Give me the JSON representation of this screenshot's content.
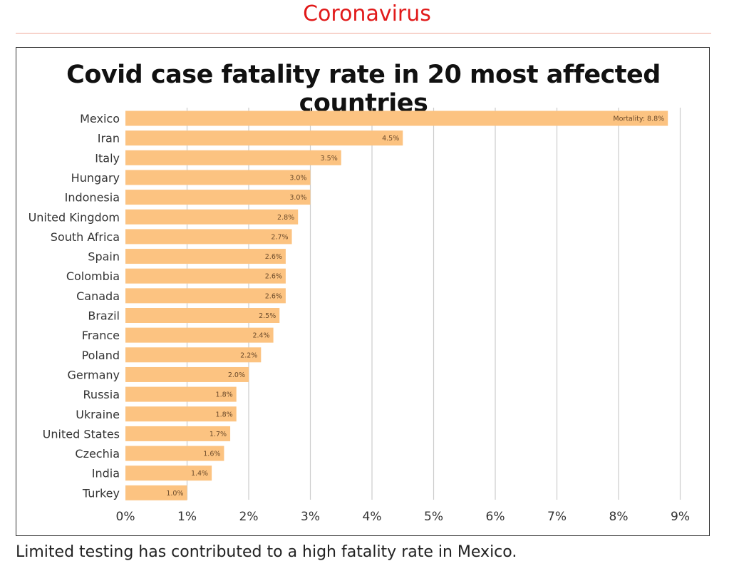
{
  "section": {
    "label": "Coronavirus"
  },
  "caption": "Limited testing has contributed to a high fatality rate in Mexico.",
  "colors": {
    "bar": "#fcc381",
    "grid": "#cccccc",
    "section_label": "#e11919"
  },
  "chart_data": {
    "type": "bar",
    "orientation": "horizontal",
    "title": "Covid case fatality rate in 20 most affected countries",
    "xlabel": "",
    "ylabel": "",
    "xlim": [
      0,
      9
    ],
    "x_ticks": [
      0,
      1,
      2,
      3,
      4,
      5,
      6,
      7,
      8,
      9
    ],
    "x_tick_labels": [
      "0%",
      "1%",
      "2%",
      "3%",
      "4%",
      "5%",
      "6%",
      "7%",
      "8%",
      "9%"
    ],
    "grid": "vertical",
    "categories": [
      "Mexico",
      "Iran",
      "Italy",
      "Hungary",
      "Indonesia",
      "United Kingdom",
      "South Africa",
      "Spain",
      "Colombia",
      "Canada",
      "Brazil",
      "France",
      "Poland",
      "Germany",
      "Russia",
      "Ukraine",
      "United States",
      "Czechia",
      "India",
      "Turkey"
    ],
    "values": [
      8.8,
      4.5,
      3.5,
      3.0,
      3.0,
      2.8,
      2.7,
      2.6,
      2.6,
      2.6,
      2.5,
      2.4,
      2.2,
      2.0,
      1.8,
      1.8,
      1.7,
      1.6,
      1.4,
      1.0
    ],
    "data_labels": [
      "Mortality: 8.8%",
      "4.5%",
      "3.5%",
      "3.0%",
      "3.0%",
      "2.8%",
      "2.7%",
      "2.6%",
      "2.6%",
      "2.6%",
      "2.5%",
      "2.4%",
      "2.2%",
      "2.0%",
      "1.8%",
      "1.8%",
      "1.7%",
      "1.6%",
      "1.4%",
      "1.0%"
    ]
  }
}
